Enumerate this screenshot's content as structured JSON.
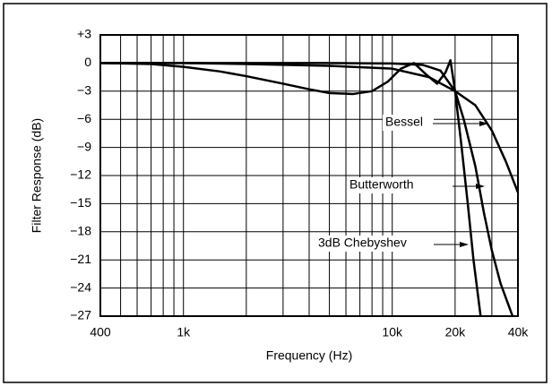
{
  "chart_data": {
    "type": "line",
    "xlabel": "Frequency (Hz)",
    "ylabel": "Filter Response (dB)",
    "xscale": "log",
    "grid": true,
    "xlim": [
      400,
      40000
    ],
    "ylim": [
      -27,
      3
    ],
    "xticks": [
      400,
      {
        "value": 1000,
        "label": "1k"
      },
      {
        "value": 10000,
        "label": "10k"
      },
      {
        "value": 20000,
        "label": "20k"
      },
      {
        "value": 40000,
        "label": "40k"
      }
    ],
    "x_minor_grid": [
      500,
      600,
      700,
      800,
      900,
      2000,
      3000,
      4000,
      5000,
      6000,
      7000,
      8000,
      9000,
      30000
    ],
    "yticks": [
      {
        "value": 3,
        "label": "+3"
      },
      0,
      {
        "value": -3,
        "label": "−3"
      },
      {
        "value": -6,
        "label": "−6"
      },
      {
        "value": -9,
        "label": "−9"
      },
      {
        "value": -12,
        "label": "−12"
      },
      {
        "value": -15,
        "label": "−15"
      },
      {
        "value": -18,
        "label": "−18"
      },
      {
        "value": -21,
        "label": "−21"
      },
      {
        "value": -24,
        "label": "−24"
      },
      {
        "value": -27,
        "label": "−27"
      }
    ],
    "series": [
      {
        "name": "Bessel",
        "color": "#000000",
        "x": [
          400,
          1000,
          2000,
          5000,
          10000,
          15000,
          20000,
          25000,
          30000,
          35000,
          40000
        ],
        "values": [
          0,
          0,
          -0.1,
          -0.3,
          -0.6,
          -1.5,
          -3,
          -4.5,
          -7.2,
          -10.5,
          -13.8
        ]
      },
      {
        "name": "Butterworth",
        "color": "#000000",
        "x": [
          400,
          5000,
          10000,
          14000,
          17000,
          20000,
          22000,
          25000,
          27500,
          30000,
          33000,
          37700
        ],
        "values": [
          0,
          0,
          -0.05,
          -0.2,
          -0.8,
          -3,
          -6,
          -11,
          -16,
          -20,
          -23.5,
          -27
        ]
      },
      {
        "name": "3dB Chebyshev",
        "color": "#000000",
        "x": [
          400,
          700,
          1000,
          1500,
          2000,
          3000,
          4000,
          5000,
          6500,
          8000,
          9500,
          11000,
          12700,
          14500,
          16400,
          18000,
          19000,
          20000,
          21500,
          23000,
          24500,
          26500
        ],
        "values": [
          0,
          -0.1,
          -0.4,
          -0.9,
          -1.4,
          -2.2,
          -2.8,
          -3.2,
          -3.3,
          -3.0,
          -2.0,
          -0.6,
          0,
          -1.2,
          -2.2,
          -1.0,
          0.3,
          -3,
          -9,
          -15,
          -21,
          -27
        ]
      }
    ]
  }
}
